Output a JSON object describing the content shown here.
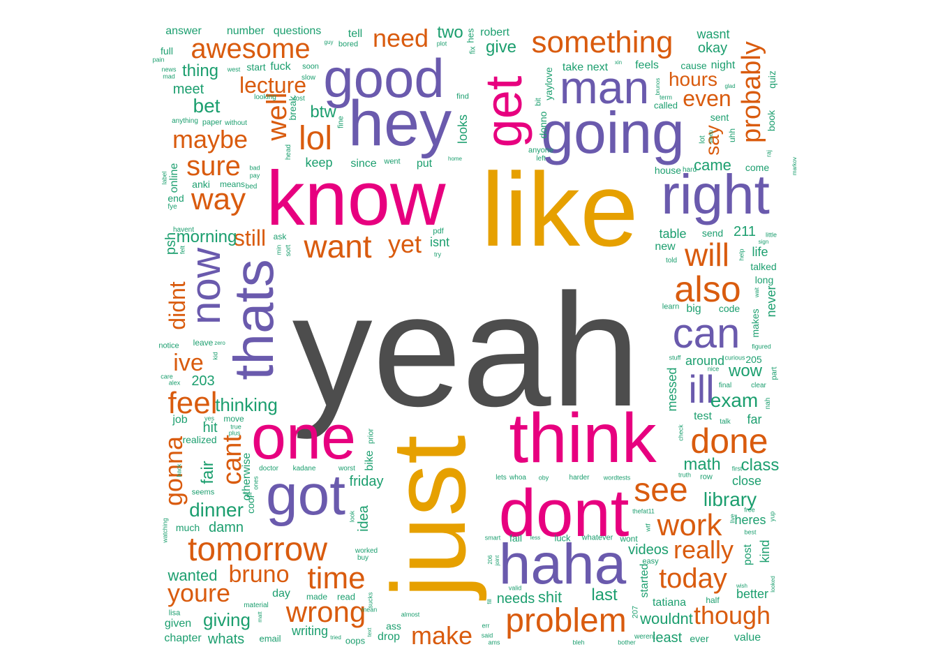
{
  "palette": {
    "gray": "#4d4d4d",
    "gold": "#e6a000",
    "magenta": "#e7007f",
    "purple": "#6a5aad",
    "orange": "#d95b0e",
    "teal": "#1b9e6e"
  },
  "words": [
    {
      "text": "yeah",
      "color": "gray"
    },
    {
      "text": "like",
      "color": "gold"
    },
    {
      "text": "just",
      "color": "gold"
    },
    {
      "text": "know",
      "color": "magenta"
    },
    {
      "text": "think",
      "color": "magenta"
    },
    {
      "text": "dont",
      "color": "magenta"
    },
    {
      "text": "one",
      "color": "magenta"
    },
    {
      "text": "get",
      "color": "magenta"
    },
    {
      "text": "hey",
      "color": "purple"
    },
    {
      "text": "good",
      "color": "purple"
    },
    {
      "text": "going",
      "color": "purple"
    },
    {
      "text": "man",
      "color": "purple"
    },
    {
      "text": "right",
      "color": "purple"
    },
    {
      "text": "thats",
      "color": "purple"
    },
    {
      "text": "got",
      "color": "purple"
    },
    {
      "text": "haha",
      "color": "purple"
    },
    {
      "text": "now",
      "color": "purple"
    },
    {
      "text": "can",
      "color": "purple"
    },
    {
      "text": "ill",
      "color": "purple"
    },
    {
      "text": "something",
      "color": "orange"
    },
    {
      "text": "awesome",
      "color": "orange"
    },
    {
      "text": "need",
      "color": "orange"
    },
    {
      "text": "lecture",
      "color": "orange"
    },
    {
      "text": "lol",
      "color": "orange"
    },
    {
      "text": "well",
      "color": "orange"
    },
    {
      "text": "maybe",
      "color": "orange"
    },
    {
      "text": "sure",
      "color": "orange"
    },
    {
      "text": "way",
      "color": "orange"
    },
    {
      "text": "want",
      "color": "orange"
    },
    {
      "text": "yet",
      "color": "orange"
    },
    {
      "text": "still",
      "color": "orange"
    },
    {
      "text": "probably",
      "color": "orange"
    },
    {
      "text": "even",
      "color": "orange"
    },
    {
      "text": "hours",
      "color": "orange"
    },
    {
      "text": "say",
      "color": "orange"
    },
    {
      "text": "will",
      "color": "orange"
    },
    {
      "text": "also",
      "color": "orange"
    },
    {
      "text": "didnt",
      "color": "orange"
    },
    {
      "text": "ive",
      "color": "orange"
    },
    {
      "text": "feel",
      "color": "orange"
    },
    {
      "text": "gonna",
      "color": "orange"
    },
    {
      "text": "cant",
      "color": "orange"
    },
    {
      "text": "done",
      "color": "orange"
    },
    {
      "text": "see",
      "color": "orange"
    },
    {
      "text": "work",
      "color": "orange"
    },
    {
      "text": "really",
      "color": "orange"
    },
    {
      "text": "today",
      "color": "orange"
    },
    {
      "text": "though",
      "color": "orange"
    },
    {
      "text": "problem",
      "color": "orange"
    },
    {
      "text": "make",
      "color": "orange"
    },
    {
      "text": "wrong",
      "color": "orange"
    },
    {
      "text": "time",
      "color": "orange"
    },
    {
      "text": "tomorrow",
      "color": "orange"
    },
    {
      "text": "bruno",
      "color": "orange"
    },
    {
      "text": "youre",
      "color": "orange"
    },
    {
      "text": "answer",
      "color": "teal"
    },
    {
      "text": "number",
      "color": "teal"
    },
    {
      "text": "questions",
      "color": "teal"
    },
    {
      "text": "tell",
      "color": "teal"
    },
    {
      "text": "two",
      "color": "teal"
    },
    {
      "text": "robert",
      "color": "teal"
    },
    {
      "text": "hes",
      "color": "teal"
    },
    {
      "text": "wasnt",
      "color": "teal"
    },
    {
      "text": "okay",
      "color": "teal"
    },
    {
      "text": "full",
      "color": "teal"
    },
    {
      "text": "pain",
      "color": "teal"
    },
    {
      "text": "news",
      "color": "teal"
    },
    {
      "text": "mad",
      "color": "teal"
    },
    {
      "text": "thing",
      "color": "teal"
    },
    {
      "text": "west",
      "color": "teal"
    },
    {
      "text": "start",
      "color": "teal"
    },
    {
      "text": "fuck",
      "color": "teal"
    },
    {
      "text": "soon",
      "color": "teal"
    },
    {
      "text": "guy",
      "color": "teal"
    },
    {
      "text": "bored",
      "color": "teal"
    },
    {
      "text": "plot",
      "color": "teal"
    },
    {
      "text": "fix",
      "color": "teal"
    },
    {
      "text": "give",
      "color": "teal"
    },
    {
      "text": "take",
      "color": "teal"
    },
    {
      "text": "next",
      "color": "teal"
    },
    {
      "text": "xin",
      "color": "teal"
    },
    {
      "text": "feels",
      "color": "teal"
    },
    {
      "text": "cause",
      "color": "teal"
    },
    {
      "text": "night",
      "color": "teal"
    },
    {
      "text": "quiz",
      "color": "teal"
    },
    {
      "text": "meet",
      "color": "teal"
    },
    {
      "text": "looking",
      "color": "teal"
    },
    {
      "text": "slow",
      "color": "teal"
    },
    {
      "text": "lost",
      "color": "teal"
    },
    {
      "text": "break",
      "color": "teal"
    },
    {
      "text": "btw",
      "color": "teal"
    },
    {
      "text": "find",
      "color": "teal"
    },
    {
      "text": "bit",
      "color": "teal"
    },
    {
      "text": "yaylove",
      "color": "teal"
    },
    {
      "text": "brunos",
      "color": "teal"
    },
    {
      "text": "term",
      "color": "teal"
    },
    {
      "text": "called",
      "color": "teal"
    },
    {
      "text": "glad",
      "color": "teal"
    },
    {
      "text": "bet",
      "color": "teal"
    },
    {
      "text": "anything",
      "color": "teal"
    },
    {
      "text": "paper",
      "color": "teal"
    },
    {
      "text": "without",
      "color": "teal"
    },
    {
      "text": "fine",
      "color": "teal"
    },
    {
      "text": "looks",
      "color": "teal"
    },
    {
      "text": "donno",
      "color": "teal"
    },
    {
      "text": "sent",
      "color": "teal"
    },
    {
      "text": "book",
      "color": "teal"
    },
    {
      "text": "anyone",
      "color": "teal"
    },
    {
      "text": "left",
      "color": "teal"
    },
    {
      "text": "lot",
      "color": "teal"
    },
    {
      "text": "sleep",
      "color": "teal"
    },
    {
      "text": "uhh",
      "color": "teal"
    },
    {
      "text": "head",
      "color": "teal"
    },
    {
      "text": "keep",
      "color": "teal"
    },
    {
      "text": "since",
      "color": "teal"
    },
    {
      "text": "went",
      "color": "teal"
    },
    {
      "text": "put",
      "color": "teal"
    },
    {
      "text": "home",
      "color": "teal"
    },
    {
      "text": "came",
      "color": "teal"
    },
    {
      "text": "come",
      "color": "teal"
    },
    {
      "text": "raj",
      "color": "teal"
    },
    {
      "text": "markov",
      "color": "teal"
    },
    {
      "text": "label",
      "color": "teal"
    },
    {
      "text": "online",
      "color": "teal"
    },
    {
      "text": "bad",
      "color": "teal"
    },
    {
      "text": "pay",
      "color": "teal"
    },
    {
      "text": "bed",
      "color": "teal"
    },
    {
      "text": "anki",
      "color": "teal"
    },
    {
      "text": "means",
      "color": "teal"
    },
    {
      "text": "end",
      "color": "teal"
    },
    {
      "text": "fye",
      "color": "teal"
    },
    {
      "text": "house",
      "color": "teal"
    },
    {
      "text": "hard",
      "color": "teal"
    },
    {
      "text": "psh",
      "color": "teal"
    },
    {
      "text": "havent",
      "color": "teal"
    },
    {
      "text": "felt",
      "color": "teal"
    },
    {
      "text": "morning",
      "color": "teal"
    },
    {
      "text": "ask",
      "color": "teal"
    },
    {
      "text": "min",
      "color": "teal"
    },
    {
      "text": "sort",
      "color": "teal"
    },
    {
      "text": "pdf",
      "color": "teal"
    },
    {
      "text": "isnt",
      "color": "teal"
    },
    {
      "text": "try",
      "color": "teal"
    },
    {
      "text": "table",
      "color": "teal"
    },
    {
      "text": "send",
      "color": "teal"
    },
    {
      "text": "211",
      "color": "teal"
    },
    {
      "text": "little",
      "color": "teal"
    },
    {
      "text": "sign",
      "color": "teal"
    },
    {
      "text": "new",
      "color": "teal"
    },
    {
      "text": "told",
      "color": "teal"
    },
    {
      "text": "life",
      "color": "teal"
    },
    {
      "text": "help",
      "color": "teal"
    },
    {
      "text": "talked",
      "color": "teal"
    },
    {
      "text": "long",
      "color": "teal"
    },
    {
      "text": "wait",
      "color": "teal"
    },
    {
      "text": "learn",
      "color": "teal"
    },
    {
      "text": "big",
      "color": "teal"
    },
    {
      "text": "code",
      "color": "teal"
    },
    {
      "text": "never",
      "color": "teal"
    },
    {
      "text": "makes",
      "color": "teal"
    },
    {
      "text": "figured",
      "color": "teal"
    },
    {
      "text": "notice",
      "color": "teal"
    },
    {
      "text": "leave",
      "color": "teal"
    },
    {
      "text": "zero",
      "color": "teal"
    },
    {
      "text": "kid",
      "color": "teal"
    },
    {
      "text": "care",
      "color": "teal"
    },
    {
      "text": "alex",
      "color": "teal"
    },
    {
      "text": "203",
      "color": "teal"
    },
    {
      "text": "stuff",
      "color": "teal"
    },
    {
      "text": "messed",
      "color": "teal"
    },
    {
      "text": "around",
      "color": "teal"
    },
    {
      "text": "nice",
      "color": "teal"
    },
    {
      "text": "curious",
      "color": "teal"
    },
    {
      "text": "205",
      "color": "teal"
    },
    {
      "text": "wow",
      "color": "teal"
    },
    {
      "text": "part",
      "color": "teal"
    },
    {
      "text": "thinking",
      "color": "teal"
    },
    {
      "text": "final",
      "color": "teal"
    },
    {
      "text": "clear",
      "color": "teal"
    },
    {
      "text": "exam",
      "color": "teal"
    },
    {
      "text": "nah",
      "color": "teal"
    },
    {
      "text": "job",
      "color": "teal"
    },
    {
      "text": "yes",
      "color": "teal"
    },
    {
      "text": "move",
      "color": "teal"
    },
    {
      "text": "true",
      "color": "teal"
    },
    {
      "text": "plus",
      "color": "teal"
    },
    {
      "text": "hit",
      "color": "teal"
    },
    {
      "text": "test",
      "color": "teal"
    },
    {
      "text": "talk",
      "color": "teal"
    },
    {
      "text": "far",
      "color": "teal"
    },
    {
      "text": "check",
      "color": "teal"
    },
    {
      "text": "realized",
      "color": "teal"
    },
    {
      "text": "prior",
      "color": "teal"
    },
    {
      "text": "bike",
      "color": "teal"
    },
    {
      "text": "math",
      "color": "teal"
    },
    {
      "text": "class",
      "color": "teal"
    },
    {
      "text": "first",
      "color": "teal"
    },
    {
      "text": "fair",
      "color": "teal"
    },
    {
      "text": "back",
      "color": "teal"
    },
    {
      "text": "doctor",
      "color": "teal"
    },
    {
      "text": "kadane",
      "color": "teal"
    },
    {
      "text": "worst",
      "color": "teal"
    },
    {
      "text": "otherwise",
      "color": "teal"
    },
    {
      "text": "ones",
      "color": "teal"
    },
    {
      "text": "friday",
      "color": "teal"
    },
    {
      "text": "let",
      "color": "teal"
    },
    {
      "text": "lets",
      "color": "teal"
    },
    {
      "text": "whoa",
      "color": "teal"
    },
    {
      "text": "oby",
      "color": "teal"
    },
    {
      "text": "harder",
      "color": "teal"
    },
    {
      "text": "wordtests",
      "color": "teal"
    },
    {
      "text": "truth",
      "color": "teal"
    },
    {
      "text": "row",
      "color": "teal"
    },
    {
      "text": "close",
      "color": "teal"
    },
    {
      "text": "seems",
      "color": "teal"
    },
    {
      "text": "dinner",
      "color": "teal"
    },
    {
      "text": "cool",
      "color": "teal"
    },
    {
      "text": "idea",
      "color": "teal"
    },
    {
      "text": "library",
      "color": "teal"
    },
    {
      "text": "much",
      "color": "teal"
    },
    {
      "text": "damn",
      "color": "teal"
    },
    {
      "text": "look",
      "color": "teal"
    },
    {
      "text": "thefat11",
      "color": "teal"
    },
    {
      "text": "wtf",
      "color": "teal"
    },
    {
      "text": "live",
      "color": "teal"
    },
    {
      "text": "free",
      "color": "teal"
    },
    {
      "text": "heres",
      "color": "teal"
    },
    {
      "text": "yup",
      "color": "teal"
    },
    {
      "text": "watching",
      "color": "teal"
    },
    {
      "text": "smart",
      "color": "teal"
    },
    {
      "text": "fail",
      "color": "teal"
    },
    {
      "text": "less",
      "color": "teal"
    },
    {
      "text": "luck",
      "color": "teal"
    },
    {
      "text": "whatever",
      "color": "teal"
    },
    {
      "text": "wont",
      "color": "teal"
    },
    {
      "text": "best",
      "color": "teal"
    },
    {
      "text": "videos",
      "color": "teal"
    },
    {
      "text": "kind",
      "color": "teal"
    },
    {
      "text": "easy",
      "color": "teal"
    },
    {
      "text": "worked",
      "color": "teal"
    },
    {
      "text": "buy",
      "color": "teal"
    },
    {
      "text": "206",
      "color": "teal"
    },
    {
      "text": "joint",
      "color": "teal"
    },
    {
      "text": "post",
      "color": "teal"
    },
    {
      "text": "wanted",
      "color": "teal"
    },
    {
      "text": "started",
      "color": "teal"
    },
    {
      "text": "looked",
      "color": "teal"
    },
    {
      "text": "wish",
      "color": "teal"
    },
    {
      "text": "valid",
      "color": "teal"
    },
    {
      "text": "needs",
      "color": "teal"
    },
    {
      "text": "shit",
      "color": "teal"
    },
    {
      "text": "last",
      "color": "teal"
    },
    {
      "text": "better",
      "color": "teal"
    },
    {
      "text": "day",
      "color": "teal"
    },
    {
      "text": "made",
      "color": "teal"
    },
    {
      "text": "read",
      "color": "teal"
    },
    {
      "text": "sucks",
      "color": "teal"
    },
    {
      "text": "fill",
      "color": "teal"
    },
    {
      "text": "tatiana",
      "color": "teal"
    },
    {
      "text": "half",
      "color": "teal"
    },
    {
      "text": "material",
      "color": "teal"
    },
    {
      "text": "lisa",
      "color": "teal"
    },
    {
      "text": "given",
      "color": "teal"
    },
    {
      "text": "matt",
      "color": "teal"
    },
    {
      "text": "giving",
      "color": "teal"
    },
    {
      "text": "mean",
      "color": "teal"
    },
    {
      "text": "ass",
      "color": "teal"
    },
    {
      "text": "almost",
      "color": "teal"
    },
    {
      "text": "err",
      "color": "teal"
    },
    {
      "text": "207",
      "color": "teal"
    },
    {
      "text": "wouldnt",
      "color": "teal"
    },
    {
      "text": "least",
      "color": "teal"
    },
    {
      "text": "ever",
      "color": "teal"
    },
    {
      "text": "value",
      "color": "teal"
    },
    {
      "text": "chapter",
      "color": "teal"
    },
    {
      "text": "whats",
      "color": "teal"
    },
    {
      "text": "email",
      "color": "teal"
    },
    {
      "text": "writing",
      "color": "teal"
    },
    {
      "text": "tried",
      "color": "teal"
    },
    {
      "text": "oops",
      "color": "teal"
    },
    {
      "text": "text",
      "color": "teal"
    },
    {
      "text": "drop",
      "color": "teal"
    },
    {
      "text": "said",
      "color": "teal"
    },
    {
      "text": "ams",
      "color": "teal"
    },
    {
      "text": "bleh",
      "color": "teal"
    },
    {
      "text": "bother",
      "color": "teal"
    },
    {
      "text": "werent",
      "color": "teal"
    },
    {
      "text": "drc",
      "color": "teal"
    }
  ]
}
